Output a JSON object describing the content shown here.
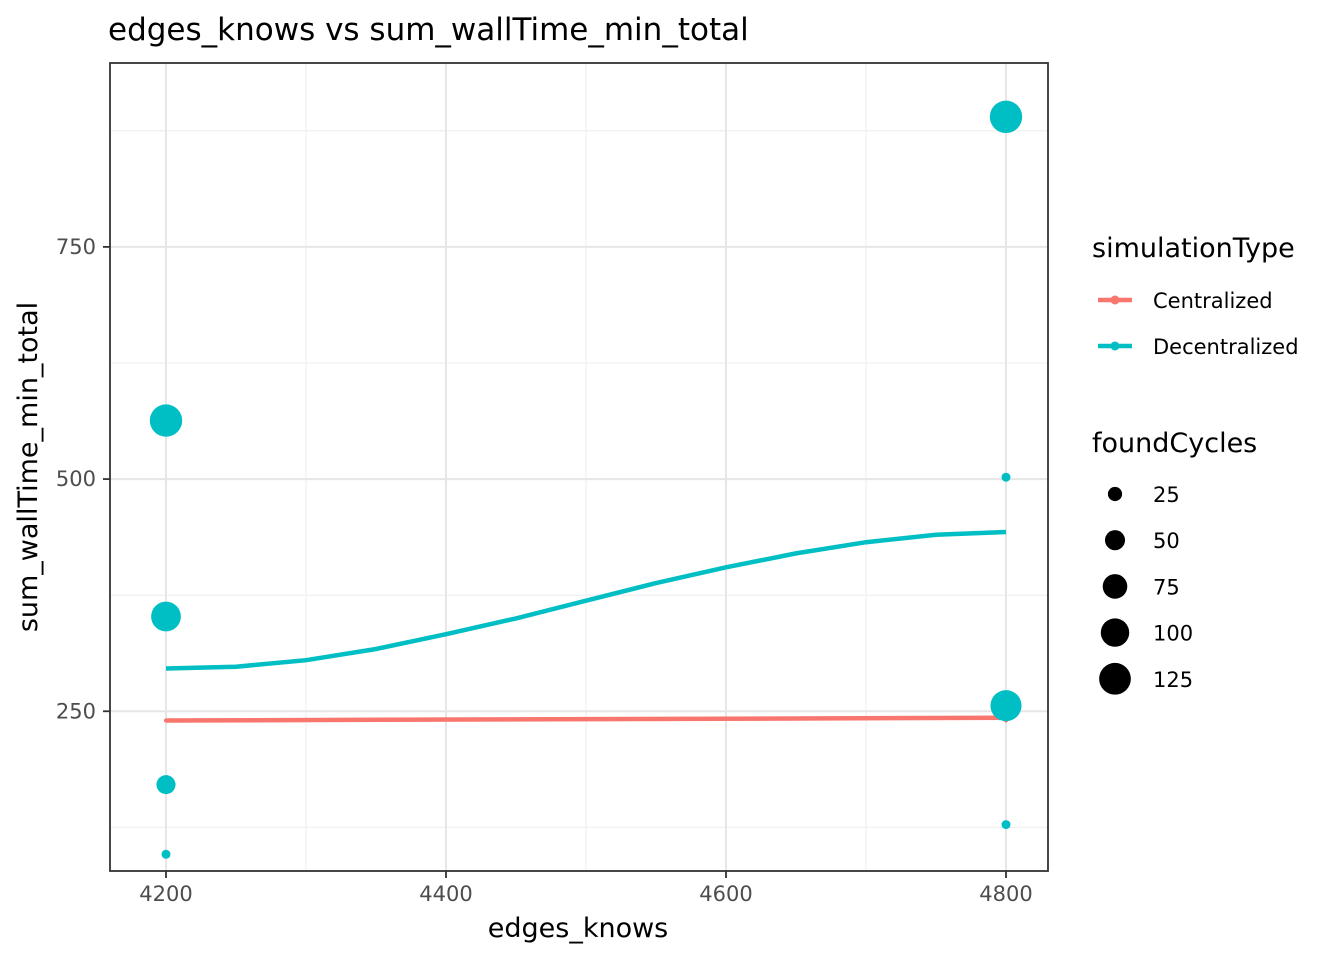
{
  "chart_data": {
    "type": "scatter",
    "title": "edges_knows  vs  sum_wallTime_min_total",
    "xlabel": "edges_knows",
    "ylabel": "sum_wallTime_min_total",
    "xlim": [
      4160,
      4830
    ],
    "ylim": [
      78,
      948
    ],
    "x_ticks": [
      4200,
      4400,
      4600,
      4800
    ],
    "y_ticks": [
      250,
      500,
      750
    ],
    "grid": true,
    "legend_position": "right",
    "color_legend": {
      "title": "simulationType",
      "entries": [
        "Centralized",
        "Decentralized"
      ]
    },
    "size_legend": {
      "title": "foundCycles",
      "entries": [
        25,
        50,
        75,
        100,
        125
      ]
    },
    "series": [
      {
        "name": "Centralized",
        "color": "#F8766D",
        "points": [
          {
            "x": 4200,
            "y": 240,
            "foundCycles": 2
          },
          {
            "x": 4800,
            "y": 240,
            "foundCycles": 2
          }
        ],
        "trend": [
          {
            "x": 4200,
            "y": 240
          },
          {
            "x": 4800,
            "y": 243
          }
        ]
      },
      {
        "name": "Decentralized",
        "color": "#00BFC4",
        "points": [
          {
            "x": 4200,
            "y": 563,
            "foundCycles": 130
          },
          {
            "x": 4200,
            "y": 352,
            "foundCycles": 110
          },
          {
            "x": 4200,
            "y": 171,
            "foundCycles": 45
          },
          {
            "x": 4200,
            "y": 96,
            "foundCycles": 10
          },
          {
            "x": 4800,
            "y": 890,
            "foundCycles": 130
          },
          {
            "x": 4800,
            "y": 502,
            "foundCycles": 10
          },
          {
            "x": 4800,
            "y": 256,
            "foundCycles": 120
          },
          {
            "x": 4800,
            "y": 128,
            "foundCycles": 10
          }
        ],
        "trend": [
          {
            "x": 4200,
            "y": 296
          },
          {
            "x": 4250,
            "y": 298
          },
          {
            "x": 4300,
            "y": 305
          },
          {
            "x": 4350,
            "y": 317
          },
          {
            "x": 4400,
            "y": 333
          },
          {
            "x": 4450,
            "y": 350
          },
          {
            "x": 4500,
            "y": 369
          },
          {
            "x": 4550,
            "y": 388
          },
          {
            "x": 4600,
            "y": 405
          },
          {
            "x": 4650,
            "y": 420
          },
          {
            "x": 4700,
            "y": 432
          },
          {
            "x": 4750,
            "y": 440
          },
          {
            "x": 4800,
            "y": 443
          }
        ]
      }
    ]
  }
}
